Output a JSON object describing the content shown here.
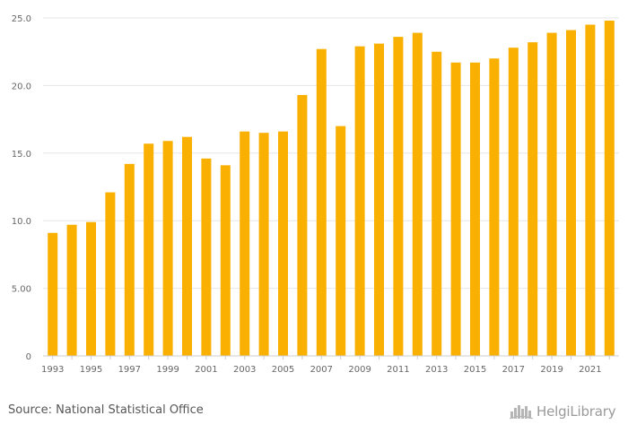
{
  "chart_data": {
    "type": "bar",
    "categories": [
      "1993",
      "1994",
      "1995",
      "1996",
      "1997",
      "1998",
      "1999",
      "2000",
      "2001",
      "2002",
      "2003",
      "2004",
      "2005",
      "2006",
      "2007",
      "2008",
      "2009",
      "2010",
      "2011",
      "2012",
      "2013",
      "2014",
      "2015",
      "2016",
      "2017",
      "2018",
      "2019",
      "2020",
      "2021",
      "2022"
    ],
    "values": [
      9.1,
      9.7,
      9.9,
      12.1,
      14.2,
      15.7,
      15.9,
      16.2,
      14.6,
      14.1,
      16.6,
      16.5,
      16.6,
      19.3,
      22.7,
      17.0,
      22.9,
      23.1,
      23.6,
      23.9,
      22.5,
      21.7,
      21.7,
      22.0,
      22.8,
      23.2,
      23.9,
      24.1,
      24.5,
      24.8
    ],
    "ylim": [
      0,
      25
    ],
    "yticks": [
      0,
      5,
      10,
      15,
      20,
      25
    ],
    "ytick_labels": [
      "0",
      "5.00",
      "10.0",
      "15.0",
      "20.0",
      "25.0"
    ],
    "xtick_labels": [
      "1993",
      "1995",
      "1997",
      "1999",
      "2001",
      "2003",
      "2005",
      "2007",
      "2009",
      "2011",
      "2013",
      "2015",
      "2017",
      "2019",
      "2021"
    ],
    "grid": true,
    "bar_color": "#F9B000",
    "title": "",
    "xlabel": "",
    "ylabel": ""
  },
  "footer": {
    "source": "Source: National Statistical Office",
    "logo_text": "HelgiLibrary",
    "logo_icon": "city-skyline-icon"
  }
}
